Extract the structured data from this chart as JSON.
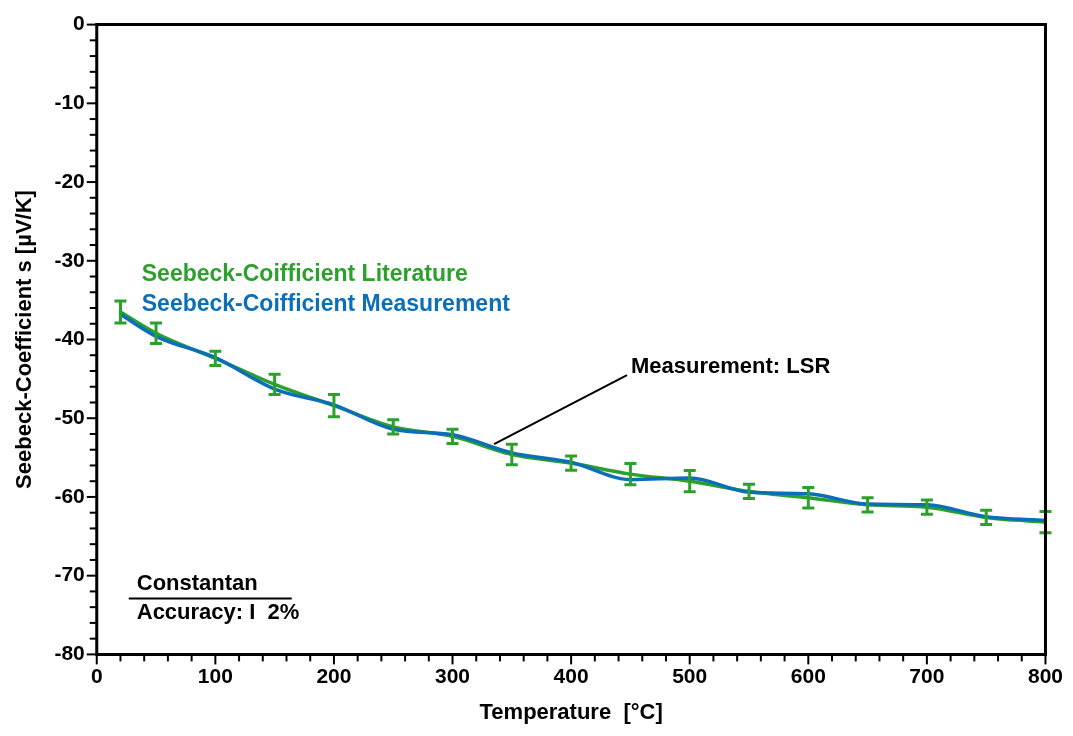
{
  "chart_data": {
    "type": "line",
    "xlabel": "Temperature  [°C]",
    "ylabel": "Seebeck-Coefficient s [µV/K]",
    "x": [
      20,
      50,
      100,
      150,
      200,
      250,
      300,
      350,
      400,
      450,
      500,
      550,
      600,
      650,
      700,
      750,
      800
    ],
    "series": [
      {
        "name": "Seebeck-Coifficient Literature",
        "color": "#2ca02c",
        "values": [
          -36.5,
          -39.2,
          -42.4,
          -45.7,
          -48.4,
          -51.1,
          -52.3,
          -54.6,
          -55.7,
          -57.1,
          -58.0,
          -59.3,
          -60.1,
          -61.0,
          -61.3,
          -62.6,
          -63.2
        ],
        "errors": [
          1.4,
          1.3,
          0.9,
          1.3,
          1.4,
          0.9,
          0.9,
          1.3,
          0.9,
          1.35,
          1.35,
          0.9,
          1.3,
          0.9,
          0.9,
          0.9,
          1.35
        ]
      },
      {
        "name": "Seebeck-Coifficient Measurement",
        "color": "#0a6eb9",
        "values": [
          -36.8,
          -39.6,
          -42.3,
          -46.3,
          -48.3,
          -51.4,
          -52.1,
          -54.4,
          -55.6,
          -57.8,
          -57.6,
          -59.4,
          -59.6,
          -60.9,
          -61.0,
          -62.5,
          -63.0
        ]
      }
    ],
    "xlim": [
      0,
      800
    ],
    "ylim": [
      -80,
      0
    ],
    "xticks": [
      0,
      {
        "value": 20,
        "label": null
      },
      {
        "value": 40,
        "label": null
      },
      {
        "value": 60,
        "label": null
      },
      {
        "value": 80,
        "label": null
      },
      100,
      {
        "value": 120,
        "label": null
      },
      {
        "value": 140,
        "label": null
      },
      {
        "value": 160,
        "label": null
      },
      {
        "value": 180,
        "label": null
      },
      200,
      {
        "value": 220,
        "label": null
      },
      {
        "value": 240,
        "label": null
      },
      {
        "value": 260,
        "label": null
      },
      {
        "value": 280,
        "label": null
      },
      300,
      {
        "value": 320,
        "label": null
      },
      {
        "value": 340,
        "label": null
      },
      {
        "value": 360,
        "label": null
      },
      {
        "value": 380,
        "label": null
      },
      400,
      {
        "value": 420,
        "label": null
      },
      {
        "value": 440,
        "label": null
      },
      {
        "value": 460,
        "label": null
      },
      {
        "value": 480,
        "label": null
      },
      500,
      {
        "value": 520,
        "label": null
      },
      {
        "value": 540,
        "label": null
      },
      {
        "value": 560,
        "label": null
      },
      {
        "value": 580,
        "label": null
      },
      600,
      {
        "value": 620,
        "label": null
      },
      {
        "value": 640,
        "label": null
      },
      {
        "value": 660,
        "label": null
      },
      {
        "value": 680,
        "label": null
      },
      700,
      {
        "value": 720,
        "label": null
      },
      {
        "value": 740,
        "label": null
      },
      {
        "value": 760,
        "label": null
      },
      {
        "value": 780,
        "label": null
      },
      800
    ],
    "yticks": [
      -80,
      {
        "value": -78,
        "label": null
      },
      {
        "value": -76,
        "label": null
      },
      {
        "value": -74,
        "label": null
      },
      {
        "value": -72,
        "label": null
      },
      -70,
      {
        "value": -68,
        "label": null
      },
      {
        "value": -66,
        "label": null
      },
      {
        "value": -64,
        "label": null
      },
      {
        "value": -62,
        "label": null
      },
      -60,
      {
        "value": -58,
        "label": null
      },
      {
        "value": -56,
        "label": null
      },
      {
        "value": -54,
        "label": null
      },
      {
        "value": -52,
        "label": null
      },
      -50,
      {
        "value": -48,
        "label": null
      },
      {
        "value": -46,
        "label": null
      },
      {
        "value": -44,
        "label": null
      },
      {
        "value": -42,
        "label": null
      },
      -40,
      {
        "value": -38,
        "label": null
      },
      {
        "value": -36,
        "label": null
      },
      {
        "value": -34,
        "label": null
      },
      {
        "value": -32,
        "label": null
      },
      -30,
      {
        "value": -28,
        "label": null
      },
      {
        "value": -26,
        "label": null
      },
      {
        "value": -24,
        "label": null
      },
      {
        "value": -22,
        "label": null
      },
      -20,
      {
        "value": -18,
        "label": null
      },
      {
        "value": -16,
        "label": null
      },
      {
        "value": -14,
        "label": null
      },
      {
        "value": -12,
        "label": null
      },
      -10,
      {
        "value": -8,
        "label": null
      },
      {
        "value": -6,
        "label": null
      },
      {
        "value": -4,
        "label": null
      },
      {
        "value": -2,
        "label": null
      },
      0
    ],
    "grid": false,
    "legend": "top left",
    "marker": "none",
    "line_style": "solid",
    "annotations": [
      {
        "text": "Measurement: LSR",
        "x": 335,
        "y": -53.3
      },
      "Constantan",
      "Accuracy: I  2%"
    ]
  }
}
